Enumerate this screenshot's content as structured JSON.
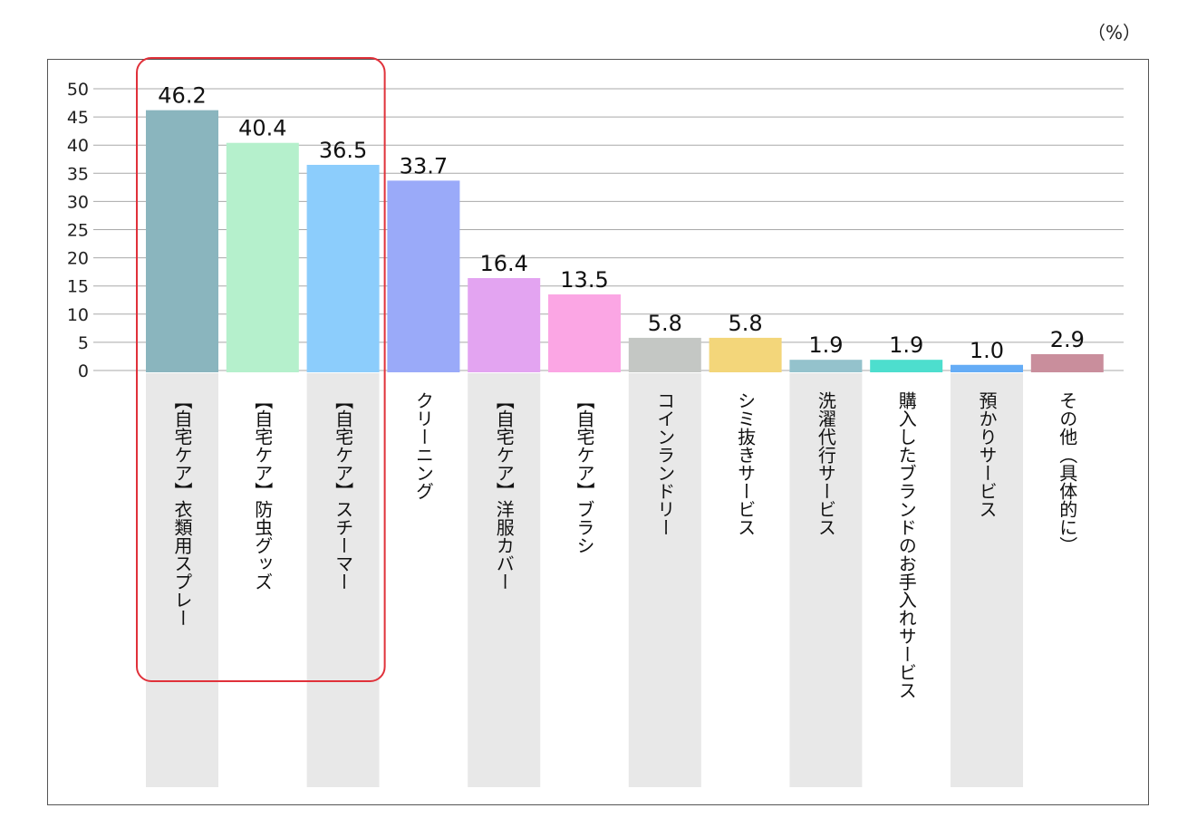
{
  "chart_data": {
    "type": "bar",
    "unit_label": "（%）",
    "ylim": [
      0,
      50
    ],
    "yticks": [
      0,
      5,
      10,
      15,
      20,
      25,
      30,
      35,
      40,
      45,
      50
    ],
    "grid": true,
    "categories": [
      "【自宅ケア】衣類用スプレー",
      "【自宅ケア】防虫グッズ",
      "【自宅ケア】スチーマー",
      "クリーニング",
      "【自宅ケア】洋服カバー",
      "【自宅ケア】ブラシ",
      "コインランドリー",
      "シミ抜きサービス",
      "洗濯代行サービス",
      "購入したブランドのお手入れサービス",
      "預かりサービス",
      "その他（具体的に）"
    ],
    "values": [
      46.2,
      40.4,
      36.5,
      33.7,
      16.4,
      13.5,
      5.8,
      5.8,
      1.9,
      1.9,
      1.0,
      2.9
    ],
    "value_labels": [
      "46.2",
      "40.4",
      "36.5",
      "33.7",
      "16.4",
      "13.5",
      "5.8",
      "5.8",
      "1.9",
      "1.9",
      "1.0",
      "2.9"
    ],
    "colors": [
      "#8ab5be",
      "#b5f0cc",
      "#8ccdfc",
      "#9aaaf9",
      "#e3a4f1",
      "#fba6e4",
      "#c4c7c4",
      "#f3d67a",
      "#94c2cc",
      "#4ddece",
      "#65acf6",
      "#c98e9c"
    ],
    "label_band_color": "#e8e8e8",
    "highlight_color": "#e0313a",
    "highlight_categories": [
      0,
      1,
      2
    ]
  }
}
